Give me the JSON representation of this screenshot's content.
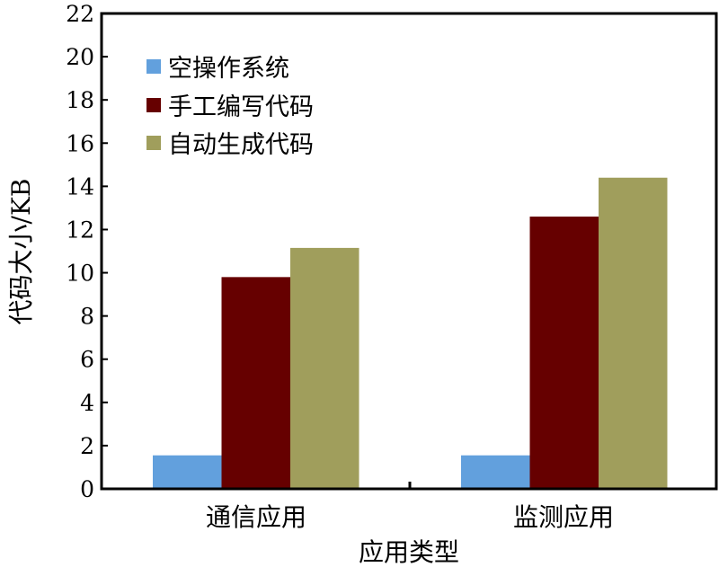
{
  "chart_data": {
    "type": "bar",
    "xlabel": "应用类型",
    "ylabel": "代码大小/KB",
    "categories": [
      "通信应用",
      "监测应用"
    ],
    "ylim": [
      0,
      22
    ],
    "yticks": [
      0,
      2,
      4,
      6,
      8,
      10,
      12,
      14,
      16,
      18,
      20,
      22
    ],
    "grid": false,
    "legend_position": "top-left",
    "series": [
      {
        "name": "空操作系统",
        "values": [
          1.55,
          1.55
        ],
        "color": "#62a0dd"
      },
      {
        "name": "手工编写代码",
        "values": [
          9.8,
          12.6
        ],
        "color": "#660000"
      },
      {
        "name": "自动生成代码",
        "values": [
          11.15,
          14.4
        ],
        "color": "#a09e5c"
      }
    ]
  }
}
